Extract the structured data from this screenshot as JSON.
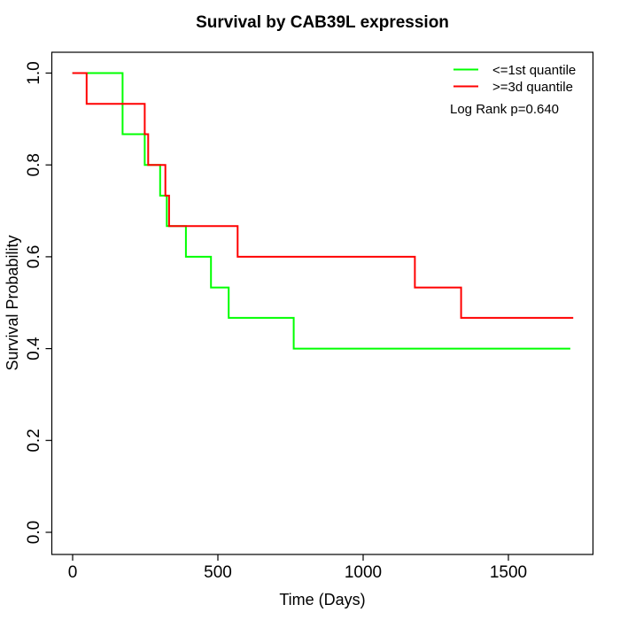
{
  "title": "Survival by CAB39L expression",
  "axes": {
    "xlabel": "Time (Days)",
    "ylabel": "Survival Probability",
    "x_tick_labels": [
      "0",
      "500",
      "1000",
      "1500"
    ],
    "y_tick_labels": [
      "0.0",
      "0.2",
      "0.4",
      "0.6",
      "0.8",
      "1.0"
    ]
  },
  "legend": {
    "items": [
      {
        "label": "<=1st quantile",
        "color": "#00ff00"
      },
      {
        "label": ">=3d quantile",
        "color": "#ff0000"
      }
    ],
    "stat_note": "Log Rank p=0.640"
  },
  "chart_data": {
    "type": "line",
    "variant": "kaplan-meier-step",
    "title": "Survival by CAB39L expression",
    "xlabel": "Time (Days)",
    "ylabel": "Survival Probability",
    "x_ticks": [
      0,
      500,
      1000,
      1500
    ],
    "y_ticks": [
      0.0,
      0.2,
      0.4,
      0.6,
      0.8,
      1.0
    ],
    "xlim": [
      -69,
      1792
    ],
    "ylim": [
      -0.04,
      1.04
    ],
    "grid": false,
    "legend_position": "top-right",
    "annotation": "Log Rank p=0.640",
    "series": [
      {
        "name": "<=1st quantile",
        "color": "#00ff00",
        "steps": [
          [
            0,
            1.0
          ],
          [
            173,
            0.867
          ],
          [
            249,
            0.8
          ],
          [
            302,
            0.733
          ],
          [
            325,
            0.667
          ],
          [
            391,
            0.6
          ],
          [
            477,
            0.533
          ],
          [
            538,
            0.467
          ],
          [
            762,
            0.4
          ],
          [
            1714,
            0.4
          ]
        ]
      },
      {
        "name": ">=3d quantile",
        "color": "#ff0000",
        "steps": [
          [
            0,
            1.0
          ],
          [
            49,
            0.933
          ],
          [
            249,
            0.867
          ],
          [
            261,
            0.8
          ],
          [
            320,
            0.733
          ],
          [
            333,
            0.667
          ],
          [
            569,
            0.6
          ],
          [
            1179,
            0.533
          ],
          [
            1338,
            0.467
          ],
          [
            1724,
            0.467
          ]
        ]
      }
    ]
  }
}
